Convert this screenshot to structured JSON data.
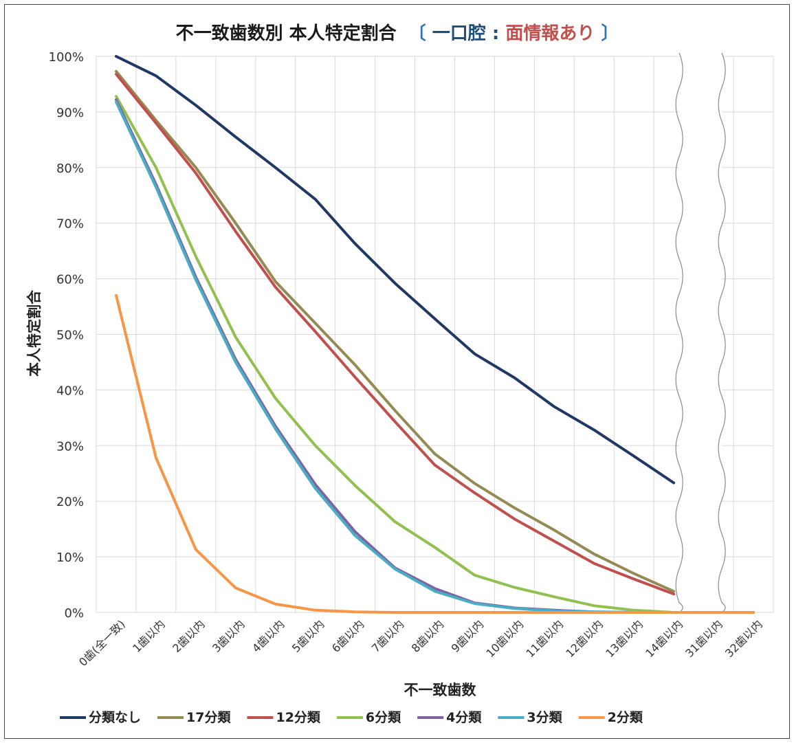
{
  "chart_data": {
    "type": "line",
    "title": {
      "main": "不一致歯数別 本人特定割合",
      "bracket_open": "〔",
      "part1": "一口腔",
      "colon": ":",
      "part2": "面情報あり",
      "bracket_close": "〕",
      "colors": {
        "main": "#1a1a1a",
        "bracket": "#2e75b6",
        "part1": "#1f4e79",
        "colon": "#1f4e79",
        "part2": "#c0504d"
      }
    },
    "xlabel": "不一致歯数",
    "ylabel": "本人特定割合",
    "categories": [
      "0歯(全一致)",
      "1歯以内",
      "2歯以内",
      "3歯以内",
      "4歯以内",
      "5歯以内",
      "6歯以内",
      "7歯以内",
      "8歯以内",
      "9歯以内",
      "10歯以内",
      "11歯以内",
      "12歯以内",
      "13歯以内",
      "14歯以内",
      "31歯以内",
      "32歯以内"
    ],
    "yticks": [
      "0%",
      "10%",
      "20%",
      "30%",
      "40%",
      "50%",
      "60%",
      "70%",
      "80%",
      "90%",
      "100%"
    ],
    "ylim": [
      0,
      100
    ],
    "axis_break_after": "14歯以内",
    "grid": true,
    "legend_position": "bottom",
    "series": [
      {
        "name": "分類なし",
        "color": "#1f3864",
        "values": [
          100,
          96.5,
          91.2,
          85.5,
          80,
          74.3,
          66.3,
          59.2,
          52.8,
          46.5,
          42.2,
          37,
          32.8,
          28.1,
          23.3,
          null,
          null
        ]
      },
      {
        "name": "17分類",
        "color": "#948a54",
        "values": [
          97.3,
          88.5,
          80,
          70,
          59.5,
          52,
          44.5,
          36.3,
          28.5,
          23.2,
          18.8,
          14.8,
          10.5,
          7,
          3.8,
          null,
          null
        ]
      },
      {
        "name": "12分類",
        "color": "#c0504d",
        "values": [
          96.8,
          88,
          79,
          68.5,
          58.5,
          50.5,
          42.3,
          34.3,
          26.5,
          21.5,
          16.8,
          12.8,
          8.8,
          6,
          3.3,
          null,
          null
        ]
      },
      {
        "name": "6分類",
        "color": "#92c050",
        "values": [
          92.8,
          80,
          64,
          49.5,
          38.5,
          30,
          22.8,
          16.3,
          11.7,
          6.7,
          4.5,
          2.8,
          1.2,
          0.4,
          0,
          0,
          0
        ]
      },
      {
        "name": "4分類",
        "color": "#7f62a0",
        "values": [
          92.2,
          77,
          60.3,
          45.5,
          33.5,
          23,
          14.5,
          8,
          4.3,
          1.7,
          0.8,
          0.4,
          0.1,
          0,
          0,
          0,
          0
        ]
      },
      {
        "name": "3分類",
        "color": "#4bacc6",
        "values": [
          91.8,
          76.5,
          59.8,
          45,
          33,
          22.3,
          13.8,
          7.8,
          3.8,
          1.6,
          0.7,
          0.3,
          0.1,
          0,
          0,
          0,
          0
        ]
      },
      {
        "name": "2分類",
        "color": "#f79646",
        "values": [
          57,
          27.8,
          11.3,
          4.4,
          1.5,
          0.4,
          0.1,
          0,
          0,
          0,
          0,
          0,
          0,
          0,
          0,
          0,
          0
        ]
      }
    ]
  }
}
